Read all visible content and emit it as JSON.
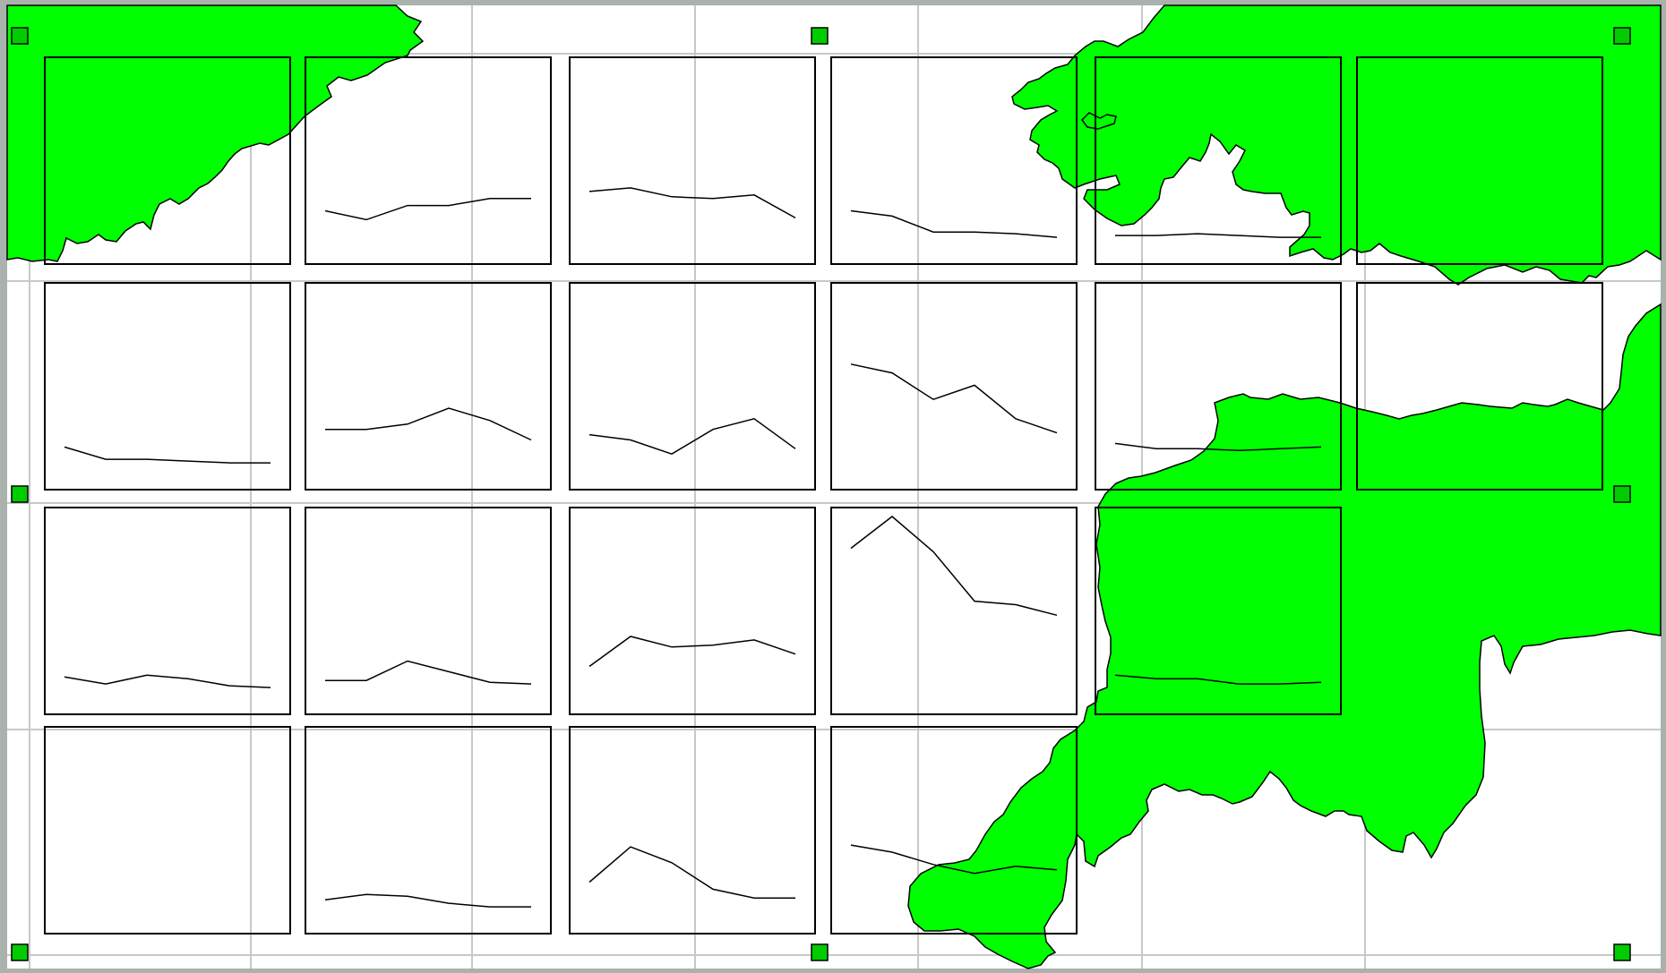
{
  "map": {
    "land_color": "#00ff00",
    "sea_color": "#ffffff",
    "outline_color": "#000000",
    "grid_color": "#c8c8c8",
    "handle_color": "#00cc00",
    "grid": {
      "rows": 4,
      "cols": 6
    },
    "selection_handles": [
      "top-left",
      "top-center",
      "top-right",
      "middle-left",
      "middle-right",
      "bottom-left",
      "bottom-center",
      "bottom-right"
    ]
  },
  "panels": [
    {
      "row": 1,
      "col": 1,
      "series": []
    },
    {
      "row": 1,
      "col": 2,
      "series": [
        0.18,
        0.13,
        0.21,
        0.21,
        0.25,
        0.25
      ]
    },
    {
      "row": 1,
      "col": 3,
      "series": [
        0.29,
        0.31,
        0.26,
        0.25,
        0.27,
        0.14
      ]
    },
    {
      "row": 1,
      "col": 4,
      "series": [
        0.18,
        0.15,
        0.06,
        0.06,
        0.05,
        0.03
      ]
    },
    {
      "row": 1,
      "col": 5,
      "series": [
        0.04,
        0.04,
        0.05,
        0.04,
        0.03,
        0.03
      ]
    },
    {
      "row": 1,
      "col": 6,
      "series": []
    },
    {
      "row": 2,
      "col": 1,
      "series": [
        0.12,
        0.05,
        0.05,
        0.04,
        0.03,
        0.03
      ]
    },
    {
      "row": 2,
      "col": 2,
      "series": [
        0.22,
        0.22,
        0.25,
        0.34,
        0.27,
        0.16
      ]
    },
    {
      "row": 2,
      "col": 3,
      "series": [
        0.19,
        0.16,
        0.08,
        0.22,
        0.28,
        0.11
      ]
    },
    {
      "row": 2,
      "col": 4,
      "series": [
        0.59,
        0.54,
        0.39,
        0.47,
        0.28,
        0.2
      ]
    },
    {
      "row": 2,
      "col": 5,
      "series": [
        0.14,
        0.11,
        0.11,
        0.1,
        0.11,
        0.12
      ]
    },
    {
      "row": 2,
      "col": 6,
      "series": []
    },
    {
      "row": 3,
      "col": 1,
      "series": [
        0.09,
        0.05,
        0.1,
        0.08,
        0.04,
        0.03
      ]
    },
    {
      "row": 3,
      "col": 2,
      "series": [
        0.07,
        0.07,
        0.18,
        0.12,
        0.06,
        0.05
      ]
    },
    {
      "row": 3,
      "col": 3,
      "series": [
        0.15,
        0.32,
        0.26,
        0.27,
        0.3,
        0.22
      ]
    },
    {
      "row": 3,
      "col": 4,
      "series": [
        0.82,
        1.0,
        0.8,
        0.52,
        0.5,
        0.44
      ]
    },
    {
      "row": 3,
      "col": 5,
      "series": [
        0.1,
        0.08,
        0.08,
        0.05,
        0.05,
        0.06
      ]
    },
    {
      "row": 4,
      "col": 1,
      "series": []
    },
    {
      "row": 4,
      "col": 2,
      "series": [
        0.07,
        0.1,
        0.09,
        0.05,
        0.03,
        0.03
      ]
    },
    {
      "row": 4,
      "col": 3,
      "series": [
        0.17,
        0.37,
        0.28,
        0.13,
        0.08,
        0.08
      ]
    },
    {
      "row": 4,
      "col": 4,
      "series": [
        0.38,
        0.34,
        0.27,
        0.22,
        0.26,
        0.24
      ]
    }
  ]
}
